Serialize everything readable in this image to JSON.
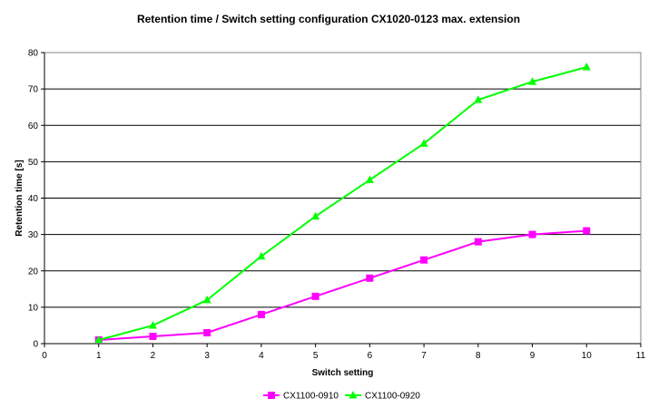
{
  "chart_data": {
    "type": "line",
    "title": "Retention time / Switch setting configuration CX1020-0123 max. extension",
    "xlabel": "Switch setting",
    "ylabel": "Retention time [s]",
    "xlim": [
      0,
      11
    ],
    "ylim": [
      0,
      80
    ],
    "x_ticks": [
      0,
      1,
      2,
      3,
      4,
      5,
      6,
      7,
      8,
      9,
      10,
      11
    ],
    "y_ticks": [
      0,
      10,
      20,
      30,
      40,
      50,
      60,
      70,
      80
    ],
    "grid": "horizontal",
    "legend_position": "bottom",
    "x": [
      1,
      2,
      3,
      4,
      5,
      6,
      7,
      8,
      9,
      10
    ],
    "series": [
      {
        "name": "CX1100-0910",
        "color": "#ff00ff",
        "marker": "square",
        "values": [
          1,
          2,
          3,
          8,
          13,
          18,
          23,
          28,
          30,
          31
        ]
      },
      {
        "name": "CX1100-0920",
        "color": "#00ff00",
        "marker": "triangle",
        "values": [
          1,
          5,
          12,
          24,
          35,
          45,
          55,
          67,
          72,
          76
        ]
      }
    ]
  }
}
